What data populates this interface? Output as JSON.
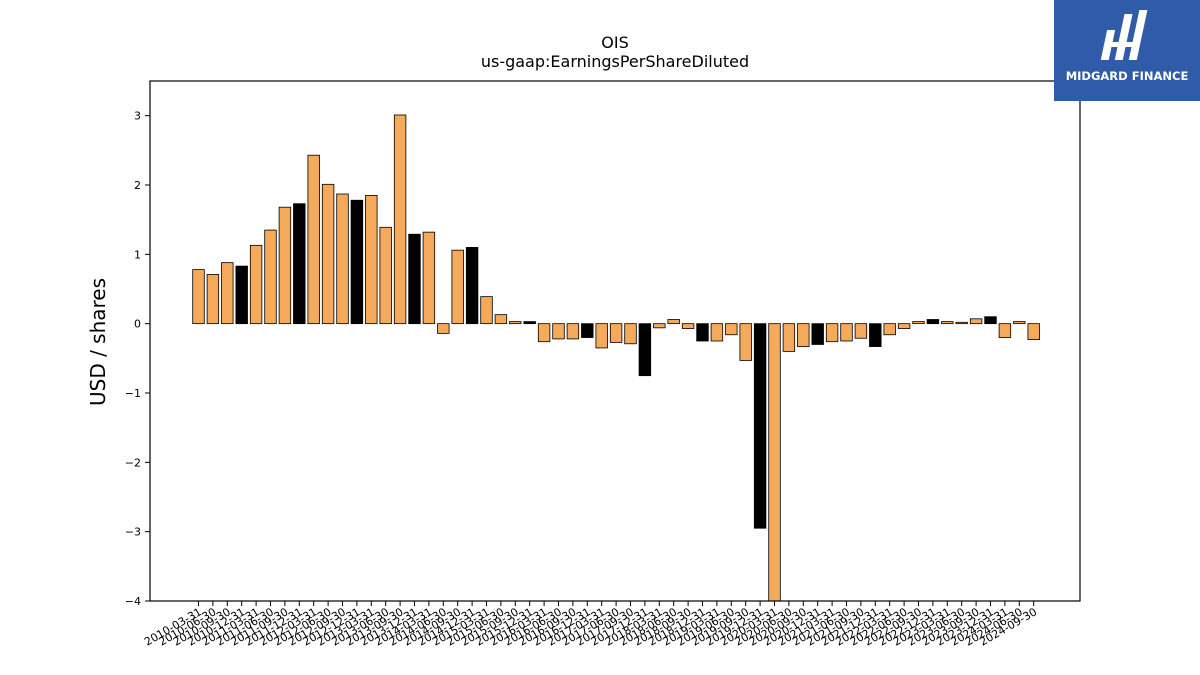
{
  "brand": {
    "name": "MIDGARD FINANCE",
    "color": "#2f5ba9"
  },
  "colors": {
    "primary": "#f5a95b",
    "highlight": "#000000",
    "edge": "#000000"
  },
  "chart_data": {
    "type": "bar",
    "title": "OIS",
    "subtitle": "us-gaap:EarningsPerShareDiluted",
    "xlabel": "",
    "ylabel": "USD / shares",
    "ylim": [
      -4,
      3.5
    ],
    "yticks": [
      {
        "value": 3,
        "label": "3"
      },
      {
        "value": 2,
        "label": "2"
      },
      {
        "value": 1,
        "label": "1"
      },
      {
        "value": 0,
        "label": "0"
      },
      {
        "value": -1,
        "label": "−1"
      },
      {
        "value": -2,
        "label": "−2"
      },
      {
        "value": -3,
        "label": "−3"
      },
      {
        "value": -4,
        "label": "−4"
      }
    ],
    "grid": false,
    "categories": [
      "2010-03-31",
      "2010-06-30",
      "2010-09-30",
      "2010-12-31",
      "2011-03-31",
      "2011-06-30",
      "2011-09-30",
      "2011-12-31",
      "2012-03-31",
      "2012-06-30",
      "2012-09-30",
      "2012-12-31",
      "2013-03-31",
      "2013-06-30",
      "2013-09-30",
      "2013-12-31",
      "2014-03-31",
      "2014-06-30",
      "2014-09-30",
      "2014-12-31",
      "2015-03-31",
      "2015-06-30",
      "2015-09-30",
      "2015-12-31",
      "2016-03-31",
      "2016-06-30",
      "2016-09-30",
      "2016-12-31",
      "2017-03-31",
      "2017-06-30",
      "2017-09-30",
      "2017-12-31",
      "2018-03-31",
      "2018-06-30",
      "2018-09-30",
      "2018-12-31",
      "2019-03-31",
      "2019-06-30",
      "2019-09-30",
      "2019-12-31",
      "2020-03-31",
      "2020-06-30",
      "2020-09-30",
      "2020-12-31",
      "2021-03-31",
      "2021-06-30",
      "2021-09-30",
      "2021-12-31",
      "2022-03-31",
      "2022-06-30",
      "2022-09-30",
      "2022-12-31",
      "2023-03-31",
      "2023-06-30",
      "2023-09-30",
      "2023-12-31",
      "2024-03-31",
      "2024-06-30",
      "2024-09-30"
    ],
    "series": [
      {
        "values": [
          0.78,
          0.71,
          0.88,
          0.83,
          1.13,
          1.35,
          1.68,
          1.73,
          2.43,
          2.01,
          1.87,
          1.78,
          1.85,
          1.39,
          3.01,
          1.29,
          1.32,
          -0.14,
          1.06,
          1.1,
          0.39,
          0.13,
          0.03,
          0.03,
          -0.26,
          -0.22,
          -0.22,
          -0.2,
          -0.35,
          -0.27,
          -0.29,
          -0.75,
          -0.06,
          0.06,
          -0.07,
          -0.25,
          -0.25,
          -0.16,
          -0.53,
          -2.95,
          -4.0,
          -0.4,
          -0.33,
          -0.3,
          -0.26,
          -0.25,
          -0.21,
          -0.33,
          -0.16,
          -0.07,
          0.03,
          0.06,
          0.03,
          0.02,
          0.07,
          0.1,
          -0.2,
          0.03,
          -0.23
        ],
        "highlight": [
          false,
          false,
          false,
          true,
          false,
          false,
          false,
          true,
          false,
          false,
          false,
          true,
          false,
          false,
          false,
          true,
          false,
          false,
          false,
          true,
          false,
          false,
          false,
          true,
          false,
          false,
          false,
          true,
          false,
          false,
          false,
          true,
          false,
          false,
          false,
          true,
          false,
          false,
          false,
          true,
          false,
          false,
          false,
          true,
          false,
          false,
          false,
          true,
          false,
          false,
          false,
          true,
          false,
          false,
          false,
          true,
          false,
          false,
          false
        ]
      }
    ]
  }
}
